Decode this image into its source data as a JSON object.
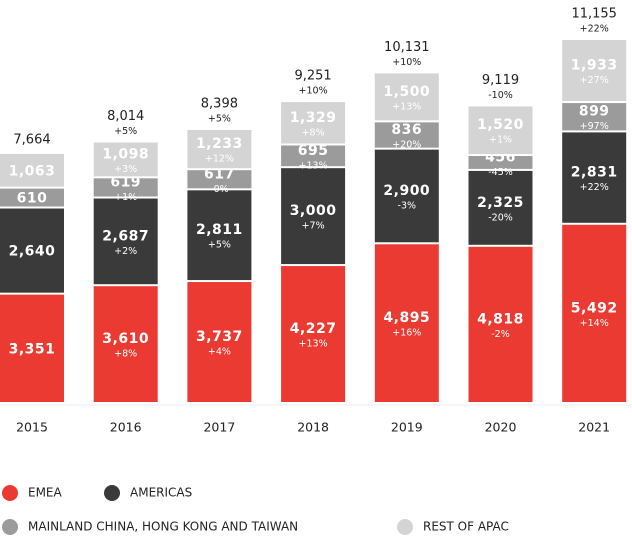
{
  "chart_data": {
    "type": "stacked-bar",
    "categories": [
      "2015",
      "2016",
      "2017",
      "2018",
      "2019",
      "2020",
      "2021"
    ],
    "series": [
      {
        "name": "EMEA",
        "color": "#ea3a32",
        "values": [
          3351,
          3610,
          3737,
          4227,
          4895,
          4818,
          5492
        ],
        "value_labels": [
          "3,351",
          "3,610",
          "3,737",
          "4,227",
          "4,895",
          "4,818",
          "5,492"
        ],
        "change_labels": [
          null,
          "+8%",
          "+4%",
          "+13%",
          "+16%",
          "-2%",
          "+14%"
        ]
      },
      {
        "name": "AMERICAS",
        "color": "#3a3a3a",
        "values": [
          2640,
          2687,
          2811,
          3000,
          2900,
          2325,
          2831
        ],
        "value_labels": [
          "2,640",
          "2,687",
          "2,811",
          "3,000",
          "2,900",
          "2,325",
          "2,831"
        ],
        "change_labels": [
          null,
          "+2%",
          "+5%",
          "+7%",
          "-3%",
          "-20%",
          "+22%"
        ]
      },
      {
        "name": "MAINLAND CHINA, HONG KONG AND TAIWAN",
        "color": "#9b9b9b",
        "values": [
          610,
          619,
          617,
          695,
          836,
          456,
          899
        ],
        "value_labels": [
          "610",
          "619",
          "617",
          "695",
          "836",
          "456",
          "899"
        ],
        "change_labels": [
          null,
          "+1%",
          "-0%",
          "+13%",
          "+20%",
          "-45%",
          "+97%"
        ]
      },
      {
        "name": "REST OF APAC",
        "color": "#d4d4d4",
        "values": [
          1063,
          1098,
          1233,
          1329,
          1500,
          1520,
          1933
        ],
        "value_labels": [
          "1,063",
          "1,098",
          "1,233",
          "1,329",
          "1,500",
          "1,520",
          "1,933"
        ],
        "change_labels": [
          null,
          "+3%",
          "+12%",
          "+8%",
          "+13%",
          "+1%",
          "+27%"
        ]
      }
    ],
    "totals": [
      7664,
      8014,
      8398,
      9251,
      10131,
      9119,
      11155
    ],
    "total_labels": [
      "7,664",
      "8,014",
      "8,398",
      "9,251",
      "10,131",
      "9,119",
      "11,155"
    ],
    "total_change_labels": [
      null,
      "+5%",
      "+5%",
      "+10%",
      "+10%",
      "-10%",
      "+22%"
    ]
  }
}
